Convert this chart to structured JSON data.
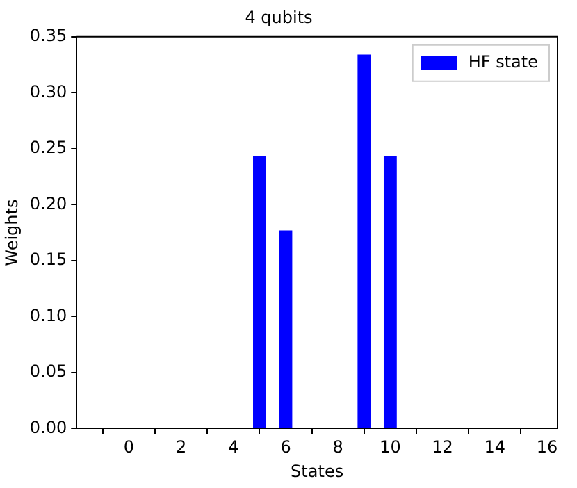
{
  "chart_data": {
    "type": "bar",
    "title": "4 qubits",
    "xlabel": "States",
    "ylabel": "Weights",
    "x": [
      5,
      6,
      9,
      10
    ],
    "series": [
      {
        "name": "HF state",
        "color": "#0000ff",
        "values": [
          0.243,
          0.177,
          0.334,
          0.243
        ]
      }
    ],
    "xlim": [
      -2,
      16.4
    ],
    "xticks": [
      0,
      2,
      4,
      6,
      8,
      10,
      12,
      14,
      16
    ],
    "ylim": [
      0,
      0.35
    ],
    "yticks": [
      {
        "value": 0,
        "label": "0.00"
      },
      {
        "value": 0.05,
        "label": "0.05"
      },
      {
        "value": 0.1,
        "label": "0.10"
      },
      {
        "value": 0.15,
        "label": "0.15"
      },
      {
        "value": 0.2,
        "label": "0.20"
      },
      {
        "value": 0.25,
        "label": "0.25"
      },
      {
        "value": 0.3,
        "label": "0.30"
      },
      {
        "value": 0.35,
        "label": "0.35"
      }
    ],
    "grid": false,
    "legend": "top right"
  }
}
